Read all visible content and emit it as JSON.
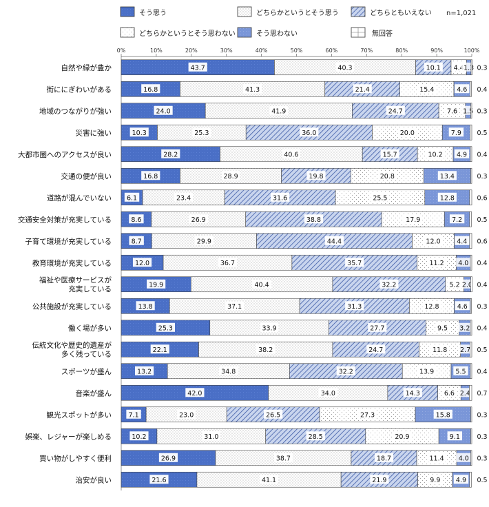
{
  "chart_data": {
    "type": "bar",
    "orientation": "horizontal",
    "stacked": true,
    "sample_size": "n=1,021",
    "legend": [
      {
        "key": "s1",
        "label": "そう思う"
      },
      {
        "key": "s2",
        "label": "どちらかというとそう思う"
      },
      {
        "key": "s3",
        "label": "どちらともいえない"
      },
      {
        "key": "s4",
        "label": "どちらかというとそう思わない"
      },
      {
        "key": "s5",
        "label": "そう思わない"
      },
      {
        "key": "s6",
        "label": "無回答"
      }
    ],
    "x_ticks": [
      "0%",
      "10%",
      "20%",
      "30%",
      "40%",
      "50%",
      "60%",
      "70%",
      "80%",
      "90%",
      "100%"
    ],
    "xlim": [
      0,
      100
    ],
    "categories": [
      "自然や緑が豊か",
      "街ににぎわいがある",
      "地域のつながりが強い",
      "災害に強い",
      "大都市圏へのアクセスが良い",
      "交通の便が良い",
      "道路が混んでいない",
      "交通安全対策が充実している",
      "子育て環境が充実している",
      "教育環境が充実している",
      "福祉や医療サービスが\n充実している",
      "公共施設が充実している",
      "働く場が多い",
      "伝統文化や歴史的遺産が\n多く残っている",
      "スポーツが盛ん",
      "音楽が盛ん",
      "観光スポットが多い",
      "娯楽、レジャーが楽しめる",
      "買い物がしやすく便利",
      "治安が良い"
    ],
    "series": [
      {
        "name": "そう思う",
        "values": [
          43.7,
          16.8,
          24.0,
          10.3,
          28.2,
          16.8,
          6.1,
          8.6,
          8.7,
          12.0,
          19.9,
          13.8,
          25.3,
          22.1,
          13.2,
          42.0,
          7.1,
          10.2,
          26.9,
          21.6
        ]
      },
      {
        "name": "どちらかというとそう思う",
        "values": [
          40.3,
          41.3,
          41.9,
          25.3,
          40.6,
          28.9,
          23.4,
          26.9,
          29.9,
          36.7,
          40.4,
          37.1,
          33.9,
          38.2,
          34.8,
          34.0,
          23.0,
          31.0,
          38.7,
          41.1
        ]
      },
      {
        "name": "どちらともいえない",
        "values": [
          10.1,
          21.4,
          24.7,
          36.0,
          15.7,
          19.8,
          31.6,
          38.8,
          44.4,
          35.7,
          32.2,
          31.3,
          27.7,
          24.7,
          32.2,
          14.3,
          26.5,
          28.5,
          18.7,
          21.9
        ]
      },
      {
        "name": "どちらかというとそう思わない",
        "values": [
          4.4,
          15.4,
          7.6,
          20.0,
          10.2,
          20.8,
          25.5,
          17.9,
          12.0,
          11.2,
          5.2,
          12.8,
          9.5,
          11.8,
          13.9,
          6.6,
          27.3,
          20.9,
          11.4,
          9.9
        ]
      },
      {
        "name": "そう思わない",
        "values": [
          1.3,
          4.6,
          1.5,
          7.9,
          4.9,
          13.4,
          12.8,
          7.2,
          4.4,
          4.0,
          2.0,
          4.6,
          3.2,
          2.7,
          5.5,
          2.4,
          15.8,
          9.1,
          4.0,
          4.9
        ]
      },
      {
        "name": "無回答",
        "values": [
          0.3,
          0.4,
          0.3,
          0.5,
          0.4,
          0.3,
          0.6,
          0.5,
          0.6,
          0.4,
          0.4,
          0.3,
          0.4,
          0.5,
          0.4,
          0.7,
          0.3,
          0.3,
          0.3,
          0.5
        ]
      }
    ]
  }
}
